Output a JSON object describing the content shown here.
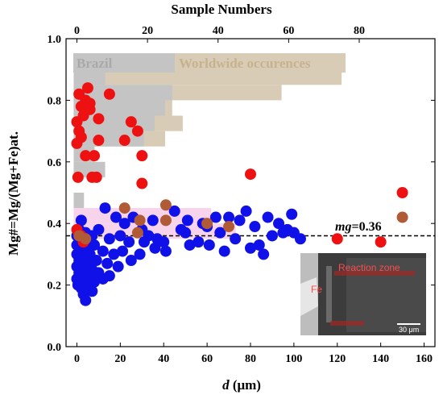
{
  "chart_data": {
    "type": "scatter",
    "xlabel_bottom": "d (μm)",
    "xlabel_bottom_var": "d",
    "xlabel_bottom_unit": " (μm)",
    "xlabel_top": "Sample Numbers",
    "ylabel": "Mg#=Mg/(Mg+Fe)at.",
    "xlim": [
      -5,
      165
    ],
    "ylim": [
      0.0,
      1.0
    ],
    "xticks_bottom": [
      "0",
      "20",
      "40",
      "60",
      "80",
      "100",
      "120",
      "140",
      "160"
    ],
    "xticks_top": [
      "0",
      "20",
      "40",
      "60",
      "80"
    ],
    "yticks": [
      "0.0",
      "0.2",
      "0.4",
      "0.6",
      "0.8",
      "1.0"
    ],
    "reference_line": {
      "y": 0.36,
      "label_var": "mg",
      "label_value": "=0.36",
      "style": "dashed"
    },
    "legend": [
      {
        "name": "Brazil",
        "color": "#b8b8b8"
      },
      {
        "name": "Worldwide occurences",
        "color": "#cdbfa5"
      }
    ],
    "histograms": {
      "bin_width": 0.05,
      "top_axis_scale": [
        0,
        90
      ],
      "brazil": {
        "color": "#c4c4c4",
        "bins": [
          {
            "y0": 0.45,
            "count": 2
          },
          {
            "y0": 0.55,
            "count": 8
          },
          {
            "y0": 0.6,
            "count": 5
          },
          {
            "y0": 0.65,
            "count": 19
          },
          {
            "y0": 0.7,
            "count": 22
          },
          {
            "y0": 0.75,
            "count": 25
          },
          {
            "y0": 0.8,
            "count": 27
          },
          {
            "y0": 0.85,
            "count": 8
          }
        ]
      },
      "worldwide": {
        "color": "#d8ccb6",
        "bins": [
          {
            "y0": 0.65,
            "count": 25
          },
          {
            "y0": 0.7,
            "count": 30
          },
          {
            "y0": 0.75,
            "count": 27
          },
          {
            "y0": 0.8,
            "count": 58
          },
          {
            "y0": 0.85,
            "count": 75
          }
        ]
      },
      "pink": {
        "color": "#f7d3ec",
        "bins": [
          {
            "y0": 0.35,
            "count": 45
          },
          {
            "y0": 0.4,
            "count": 38
          }
        ]
      }
    },
    "series": [
      {
        "color": "#1010e8",
        "points": [
          [
            0,
            0.22
          ],
          [
            0,
            0.26
          ],
          [
            0,
            0.3
          ],
          [
            0,
            0.33
          ],
          [
            0,
            0.36
          ],
          [
            0.5,
            0.2
          ],
          [
            1,
            0.24
          ],
          [
            1,
            0.28
          ],
          [
            1,
            0.32
          ],
          [
            1,
            0.38
          ],
          [
            2,
            0.19
          ],
          [
            2,
            0.21
          ],
          [
            2,
            0.25
          ],
          [
            2,
            0.29
          ],
          [
            2,
            0.35
          ],
          [
            2,
            0.41
          ],
          [
            3,
            0.17
          ],
          [
            3,
            0.23
          ],
          [
            3,
            0.27
          ],
          [
            3,
            0.31
          ],
          [
            4,
            0.15
          ],
          [
            4,
            0.19
          ],
          [
            4,
            0.26
          ],
          [
            4,
            0.33
          ],
          [
            4,
            0.37
          ],
          [
            5,
            0.2
          ],
          [
            5,
            0.28
          ],
          [
            5,
            0.34
          ],
          [
            6,
            0.23
          ],
          [
            6,
            0.3
          ],
          [
            7,
            0.18
          ],
          [
            7,
            0.25
          ],
          [
            7,
            0.36
          ],
          [
            8,
            0.21
          ],
          [
            8,
            0.33
          ],
          [
            9,
            0.28
          ],
          [
            10,
            0.24
          ],
          [
            10,
            0.38
          ],
          [
            12,
            0.31
          ],
          [
            12,
            0.22
          ],
          [
            13,
            0.45
          ],
          [
            14,
            0.27
          ],
          [
            15,
            0.35
          ],
          [
            15,
            0.23
          ],
          [
            17,
            0.3
          ],
          [
            18,
            0.42
          ],
          [
            19,
            0.26
          ],
          [
            20,
            0.36
          ],
          [
            21,
            0.31
          ],
          [
            22,
            0.4
          ],
          [
            24,
            0.34
          ],
          [
            25,
            0.28
          ],
          [
            26,
            0.42
          ],
          [
            29,
            0.3
          ],
          [
            30,
            0.38
          ],
          [
            31,
            0.34
          ],
          [
            33,
            0.36
          ],
          [
            35,
            0.41
          ],
          [
            36,
            0.32
          ],
          [
            37,
            0.35
          ],
          [
            40,
            0.34
          ],
          [
            41,
            0.31
          ],
          [
            45,
            0.44
          ],
          [
            48,
            0.38
          ],
          [
            50,
            0.37
          ],
          [
            51,
            0.41
          ],
          [
            52,
            0.33
          ],
          [
            56,
            0.34
          ],
          [
            58,
            0.4
          ],
          [
            60,
            0.39
          ],
          [
            61,
            0.33
          ],
          [
            64,
            0.42
          ],
          [
            66,
            0.37
          ],
          [
            68,
            0.31
          ],
          [
            70,
            0.42
          ],
          [
            73,
            0.35
          ],
          [
            75,
            0.41
          ],
          [
            78,
            0.44
          ],
          [
            80,
            0.32
          ],
          [
            82,
            0.39
          ],
          [
            84,
            0.33
          ],
          [
            86,
            0.3
          ],
          [
            88,
            0.42
          ],
          [
            90,
            0.36
          ],
          [
            93,
            0.4
          ],
          [
            95,
            0.37
          ],
          [
            97,
            0.38
          ],
          [
            99,
            0.43
          ],
          [
            100,
            0.37
          ],
          [
            103,
            0.35
          ]
        ]
      },
      {
        "color": "#ee1111",
        "points": [
          [
            0,
            0.66
          ],
          [
            0,
            0.73
          ],
          [
            0.5,
            0.55
          ],
          [
            1,
            0.7
          ],
          [
            1,
            0.82
          ],
          [
            2,
            0.68
          ],
          [
            2,
            0.78
          ],
          [
            3,
            0.75
          ],
          [
            4,
            0.8
          ],
          [
            4,
            0.62
          ],
          [
            5,
            0.84
          ],
          [
            6,
            0.79
          ],
          [
            6,
            0.77
          ],
          [
            7,
            0.55
          ],
          [
            8,
            0.62
          ],
          [
            9,
            0.55
          ],
          [
            10,
            0.67
          ],
          [
            10,
            0.74
          ],
          [
            15,
            0.82
          ],
          [
            22,
            0.67
          ],
          [
            25,
            0.73
          ],
          [
            28,
            0.7
          ],
          [
            30,
            0.62
          ],
          [
            30,
            0.53
          ],
          [
            80,
            0.56
          ],
          [
            120,
            0.35
          ],
          [
            140,
            0.34
          ],
          [
            150,
            0.5
          ],
          [
            0,
            0.38
          ],
          [
            2,
            0.36
          ],
          [
            3,
            0.34
          ]
        ]
      },
      {
        "color": "#b05a36",
        "points": [
          [
            22,
            0.45
          ],
          [
            28,
            0.37
          ],
          [
            29,
            0.41
          ],
          [
            41,
            0.46
          ],
          [
            41,
            0.41
          ],
          [
            60,
            0.4
          ],
          [
            70,
            0.39
          ],
          [
            150,
            0.42
          ],
          [
            4,
            0.35
          ],
          [
            1,
            0.36
          ]
        ]
      }
    ]
  },
  "inset": {
    "label_reaction": "Reaction zone",
    "label_fe": "Fe",
    "scale_label": "30 μm"
  }
}
